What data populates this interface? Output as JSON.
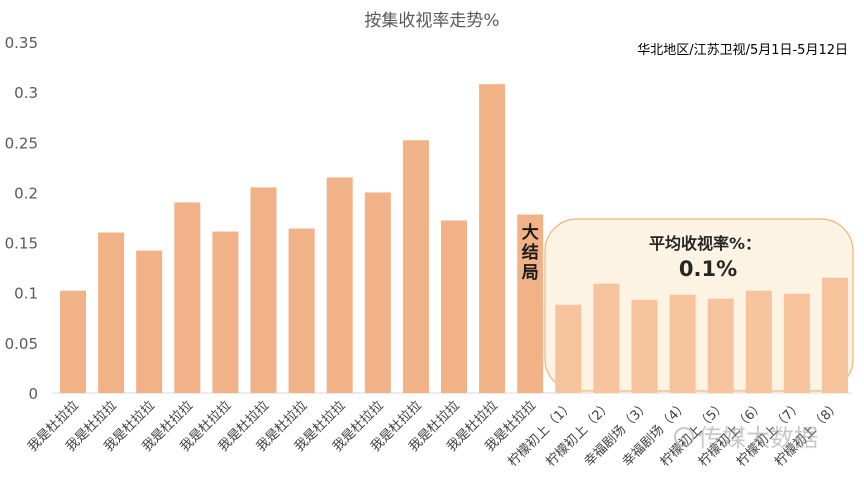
{
  "chart_data": {
    "type": "bar",
    "title": "按集收视率走势%",
    "subtitle": "华北地区/江苏卫视/5月1日-5月12日",
    "xlabel": "",
    "ylabel": "",
    "ylim": [
      0,
      0.35
    ],
    "yticks": [
      "0",
      "0.05",
      "0.1",
      "0.15",
      "0.2",
      "0.25",
      "0.3",
      "0.35"
    ],
    "grid": false,
    "categories": [
      "我是杜拉拉",
      "我是杜拉拉",
      "我是杜拉拉",
      "我是杜拉拉",
      "我是杜拉拉",
      "我是杜拉拉",
      "我是杜拉拉",
      "我是杜拉拉",
      "我是杜拉拉",
      "我是杜拉拉",
      "我是杜拉拉",
      "我是杜拉拉",
      "我是杜拉拉",
      "柠檬初上（1）",
      "柠檬初上（2）",
      "幸福剧场（3）",
      "幸福剧场（4）",
      "柠檬初上（5）",
      "柠檬初上（6）",
      "柠檬初上（7）",
      "柠檬初上（8）"
    ],
    "values": [
      0.102,
      0.16,
      0.142,
      0.19,
      0.161,
      0.205,
      0.164,
      0.215,
      0.2,
      0.252,
      0.172,
      0.308,
      0.178,
      0.088,
      0.109,
      0.093,
      0.098,
      0.094,
      0.102,
      0.099,
      0.115
    ],
    "colors": {
      "bar": "#f2b287",
      "bar_light": "#f6c39d",
      "axis": "#d9d9d9",
      "panel_bg": "#fdf3e3",
      "panel_border": "#f0b27a"
    },
    "annotations": {
      "finale": "大结局",
      "avg_label": "平均收视率%：",
      "avg_value": "0.1%"
    },
    "watermark": "传媒大数据"
  }
}
